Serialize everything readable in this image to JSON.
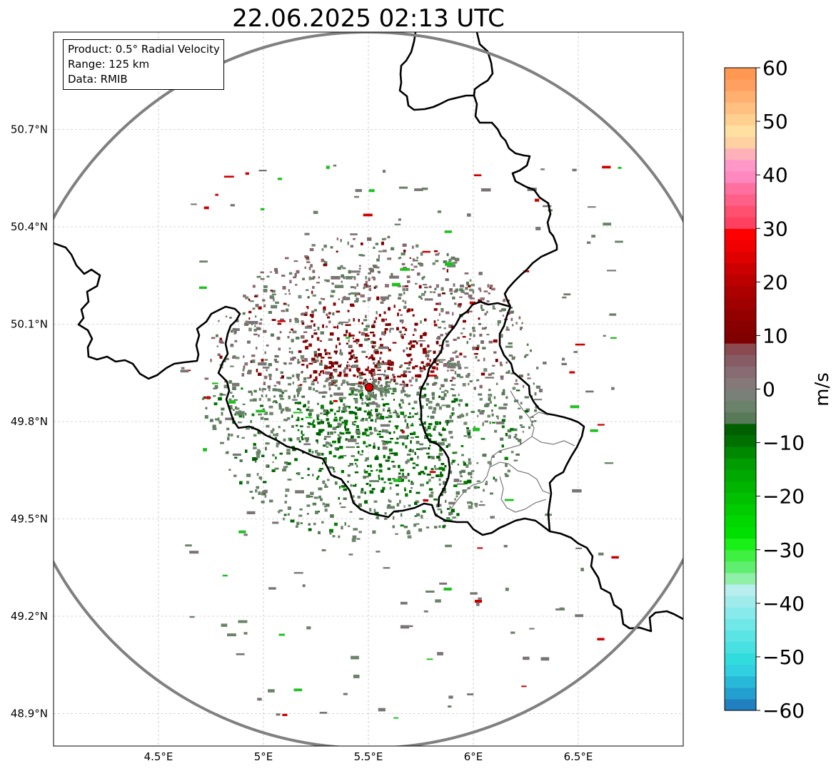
{
  "title": "22.06.2025 02:13 UTC",
  "info_box": {
    "product": "Product: 0.5° Radial Velocity",
    "range": "Range: 125 km",
    "data": "Data: RMIB"
  },
  "map": {
    "lon_range": [
      4.0,
      7.0
    ],
    "lat_range": [
      48.8,
      51.0
    ],
    "radar_site": {
      "lon": 5.505,
      "lat": 49.915
    },
    "range_ring_color": "#808080",
    "border_color": "#000000",
    "grid_color": "#b0b0b0"
  },
  "axes": {
    "x_ticks": [
      {
        "value": 4.5,
        "label": "4.5°E"
      },
      {
        "value": 5.0,
        "label": "5°E"
      },
      {
        "value": 5.5,
        "label": "5.5°E"
      },
      {
        "value": 6.0,
        "label": "6°E"
      },
      {
        "value": 6.5,
        "label": "6.5°E"
      }
    ],
    "y_ticks": [
      {
        "value": 50.7,
        "label": "50.7°N"
      },
      {
        "value": 50.4,
        "label": "50.4°N"
      },
      {
        "value": 50.1,
        "label": "50.1°N"
      },
      {
        "value": 49.8,
        "label": "49.8°N"
      },
      {
        "value": 49.5,
        "label": "49.5°N"
      },
      {
        "value": 49.2,
        "label": "49.2°N"
      },
      {
        "value": 48.9,
        "label": "48.9°N"
      }
    ]
  },
  "colorbar": {
    "unit": "m/s",
    "min": -60,
    "max": 60,
    "ticks": [
      {
        "value": 60,
        "label": "60"
      },
      {
        "value": 50,
        "label": "50"
      },
      {
        "value": 40,
        "label": "40"
      },
      {
        "value": 30,
        "label": "30"
      },
      {
        "value": 20,
        "label": "20"
      },
      {
        "value": 10,
        "label": "10"
      },
      {
        "value": 0,
        "label": "0"
      },
      {
        "value": -10,
        "label": "−10"
      },
      {
        "value": -20,
        "label": "−20"
      },
      {
        "value": -30,
        "label": "−30"
      },
      {
        "value": -40,
        "label": "−40"
      },
      {
        "value": -50,
        "label": "−50"
      },
      {
        "value": -60,
        "label": "−60"
      }
    ],
    "colors": [
      "#2080c0",
      "#24a0d0",
      "#28b8d8",
      "#30d0e0",
      "#30dcdc",
      "#48e0e0",
      "#5ae4e4",
      "#70e8e8",
      "#88eaea",
      "#a0ecec",
      "#b8eeee",
      "#90f0a8",
      "#60ee70",
      "#40f040",
      "#18f018",
      "#00e000",
      "#00d800",
      "#00cc00",
      "#00c000",
      "#00b400",
      "#00a800",
      "#009c00",
      "#008800",
      "#007000",
      "#006000",
      "#587a58",
      "#6a826a",
      "#788078",
      "#847878",
      "#886c74",
      "#885c64",
      "#8a4a50",
      "#800000",
      "#880000",
      "#940000",
      "#a00000",
      "#ac0000",
      "#bc0000",
      "#cc0000",
      "#e00000",
      "#f00000",
      "#ff0000",
      "#ff4060",
      "#ff5070",
      "#ff6088",
      "#ff70a0",
      "#ff88c0",
      "#ff98c8",
      "#ffb0b8",
      "#ffd0a0",
      "#ffe0a0",
      "#ffd090",
      "#ffc080",
      "#ffb070",
      "#ffa060",
      "#ff9850"
    ]
  }
}
